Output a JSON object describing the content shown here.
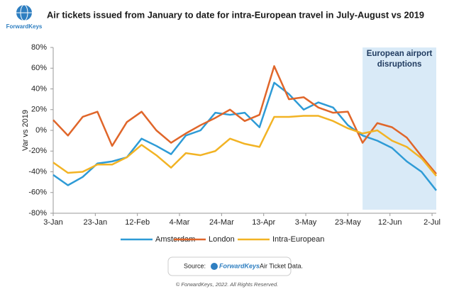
{
  "logo": "ForwardKeys",
  "chart_data": {
    "type": "line",
    "title": "Air tickets issued from January to date for intra-European travel in July-August vs 2019",
    "y_label": "Var vs 2019",
    "x": [
      0,
      7,
      14,
      21,
      28,
      35,
      42,
      49,
      56,
      63,
      70,
      77,
      84,
      91,
      98,
      105,
      112,
      119,
      126,
      133,
      140,
      147,
      154,
      161,
      168,
      175,
      182
    ],
    "xlim": [
      0,
      182
    ],
    "xticks": [
      {
        "value": 0,
        "label": "3-Jan"
      },
      {
        "value": 20,
        "label": "23-Jan"
      },
      {
        "value": 40,
        "label": "12-Feb"
      },
      {
        "value": 60,
        "label": "4-Mar"
      },
      {
        "value": 80,
        "label": "24-Mar"
      },
      {
        "value": 100,
        "label": "13-Apr"
      },
      {
        "value": 120,
        "label": "3-May"
      },
      {
        "value": 140,
        "label": "23-May"
      },
      {
        "value": 160,
        "label": "12-Jun"
      },
      {
        "value": 180,
        "label": "2-Jul"
      }
    ],
    "ylim": [
      -80,
      80
    ],
    "yticks": [
      {
        "value": -80,
        "label": "-80%"
      },
      {
        "value": -60,
        "label": "-60%"
      },
      {
        "value": -40,
        "label": "-40%"
      },
      {
        "value": -20,
        "label": "-20%"
      },
      {
        "value": 0,
        "label": "0%"
      },
      {
        "value": 20,
        "label": "20%"
      },
      {
        "value": 40,
        "label": "40%"
      },
      {
        "value": 60,
        "label": "60%"
      },
      {
        "value": 80,
        "label": "80%"
      }
    ],
    "grid": false,
    "legend": "bottom",
    "annotation": {
      "text": [
        "European airport",
        "disruptions"
      ],
      "xrange": [
        147,
        182
      ],
      "color": "#d9eaf7"
    },
    "series": [
      {
        "name": "Amsterdam",
        "color": "#2e9bd6",
        "values": [
          -43,
          -53,
          -45,
          -32,
          -30,
          -26,
          -8,
          -15,
          -23,
          -5,
          0,
          17,
          15,
          17,
          3,
          46,
          35,
          20,
          27,
          22,
          5,
          -5,
          -10,
          -17,
          -30,
          -40,
          -58
        ]
      },
      {
        "name": "London",
        "color": "#e0662a",
        "values": [
          10,
          -5,
          13,
          18,
          -15,
          8,
          18,
          0,
          -12,
          -3,
          5,
          12,
          20,
          9,
          15,
          62,
          30,
          32,
          22,
          17,
          18,
          -12,
          7,
          3,
          -7,
          -25,
          -42
        ]
      },
      {
        "name": "Intra-European",
        "color": "#f2b324",
        "values": [
          -31,
          -41,
          -40,
          -33,
          -33,
          -26,
          -14,
          -24,
          -36,
          -22,
          -24,
          -20,
          -8,
          -13,
          -16,
          13,
          13,
          14,
          14,
          9,
          2,
          -3,
          0,
          -10,
          -16,
          -27,
          -44
        ]
      }
    ]
  },
  "source": {
    "prefix": "Source:",
    "brand": "ForwardKeys",
    "text": "Air Ticket Data."
  },
  "footer": "© ForwardKeys, 2022. All Rights Reserved."
}
